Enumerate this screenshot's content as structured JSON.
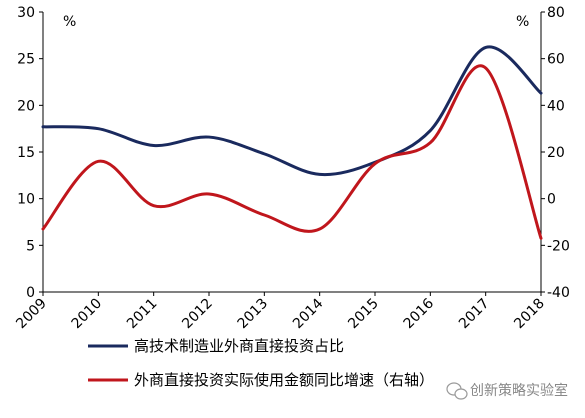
{
  "chart_data": {
    "type": "line",
    "x": [
      "2009",
      "2010",
      "2011",
      "2012",
      "2013",
      "2014",
      "2015",
      "2016",
      "2017",
      "2018"
    ],
    "left_axis": {
      "ylim": [
        0,
        30
      ],
      "ticks": [
        "0",
        "5",
        "10",
        "15",
        "20",
        "25",
        "30"
      ],
      "unit": "%"
    },
    "right_axis": {
      "ylim": [
        -40,
        80
      ],
      "ticks": [
        "-40",
        "-20",
        "0",
        "20",
        "40",
        "60",
        "80"
      ],
      "unit": "%"
    },
    "series": [
      {
        "name": "高技术制造业外商直接投资占比",
        "axis": "left",
        "color": "#1a2a5e",
        "values": [
          17.7,
          17.5,
          15.7,
          16.6,
          14.8,
          12.6,
          13.9,
          17.3,
          26.2,
          21.3
        ]
      },
      {
        "name": "外商直接投资实际使用金额同比增速（右轴）",
        "axis": "right",
        "color": "#c0161c",
        "values": [
          -13,
          16,
          -3,
          2,
          -7,
          -13,
          15,
          24,
          56,
          -17
        ]
      }
    ],
    "grid": false,
    "legend_position": "bottom-left"
  },
  "watermark": {
    "text": "创新策略实验室",
    "icon": "wechat-icon"
  }
}
